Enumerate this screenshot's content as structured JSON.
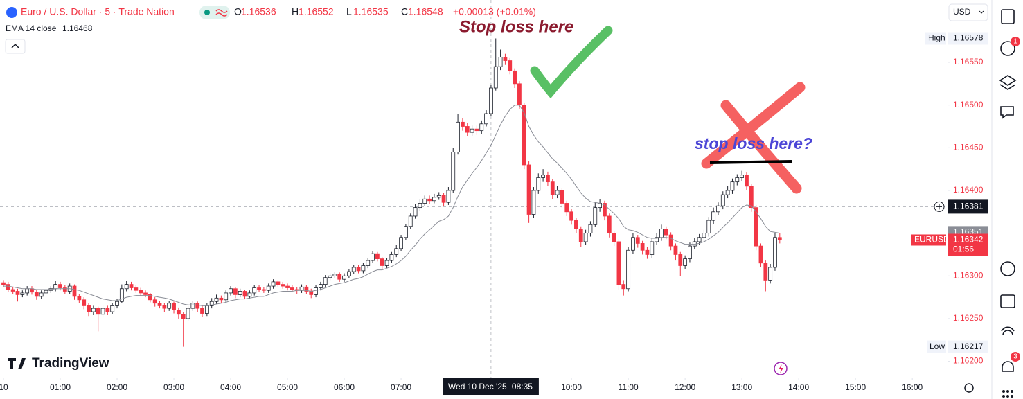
{
  "header": {
    "symbol": "Euro / U.S. Dollar · 5 · Trade Nation",
    "ohlc": [
      {
        "label": "O",
        "value": 1.16536
      },
      {
        "label": "H",
        "value": 1.16552
      },
      {
        "label": "L",
        "value": 1.16535
      },
      {
        "label": "C",
        "value": 1.16548
      }
    ],
    "change": "+0.00013 (+0.01%)",
    "indicator": {
      "name": "EMA 14 close",
      "value": 1.16468
    },
    "currency": "USD"
  },
  "logo": "TradingView",
  "sidebar_badges": [
    "1",
    "3"
  ],
  "chart_data": {
    "type": "candlestick",
    "x": [
      "00:00",
      "00:05",
      "00:10",
      "00:15",
      "00:20",
      "00:25",
      "00:30",
      "00:35",
      "00:40",
      "00:45",
      "00:50",
      "00:55",
      "01:00",
      "01:05",
      "01:10",
      "01:15",
      "01:20",
      "01:25",
      "01:30",
      "01:35",
      "01:40",
      "01:45",
      "01:50",
      "01:55",
      "02:00",
      "02:05",
      "02:10",
      "02:15",
      "02:20",
      "02:25",
      "02:30",
      "02:35",
      "02:40",
      "02:45",
      "02:50",
      "02:55",
      "03:00",
      "03:05",
      "03:10",
      "03:15",
      "03:20",
      "03:25",
      "03:30",
      "03:35",
      "03:40",
      "03:45",
      "03:50",
      "03:55",
      "04:00",
      "04:05",
      "04:10",
      "04:15",
      "04:20",
      "04:25",
      "04:30",
      "04:35",
      "04:40",
      "04:45",
      "04:50",
      "04:55",
      "05:00",
      "05:05",
      "05:10",
      "05:15",
      "05:20",
      "05:25",
      "05:30",
      "05:35",
      "05:40",
      "05:45",
      "05:50",
      "05:55",
      "06:00",
      "06:05",
      "06:10",
      "06:15",
      "06:20",
      "06:25",
      "06:30",
      "06:35",
      "06:40",
      "06:45",
      "06:50",
      "06:55",
      "07:00",
      "07:05",
      "07:10",
      "07:15",
      "07:20",
      "07:25",
      "07:30",
      "07:35",
      "07:40",
      "07:45",
      "07:50",
      "07:55",
      "08:00",
      "08:05",
      "08:10",
      "08:15",
      "08:20",
      "08:25",
      "08:30",
      "08:35",
      "08:40",
      "08:45",
      "08:50",
      "08:55",
      "09:00",
      "09:05",
      "09:10",
      "09:15",
      "09:20",
      "09:25",
      "09:30",
      "09:35",
      "09:40",
      "09:45",
      "09:50",
      "09:55",
      "10:00",
      "10:05",
      "10:10",
      "10:15",
      "10:20",
      "10:25",
      "10:30",
      "10:35",
      "10:40",
      "10:45",
      "10:50",
      "10:55",
      "11:00",
      "11:05",
      "11:10",
      "11:15",
      "11:20",
      "11:25",
      "11:30",
      "11:35",
      "11:40",
      "11:45",
      "11:50",
      "11:55",
      "12:00",
      "12:05",
      "12:10",
      "12:15",
      "12:20",
      "12:25",
      "12:30",
      "12:35",
      "12:40",
      "12:45",
      "12:50",
      "12:55",
      "13:00",
      "13:05",
      "13:10",
      "13:15",
      "13:20",
      "13:25",
      "13:30",
      "13:35",
      "13:40"
    ],
    "open": [
      1.16292,
      1.1629,
      1.16284,
      1.16282,
      1.16278,
      1.1628,
      1.16285,
      1.16281,
      1.16276,
      1.1628,
      1.16283,
      1.16285,
      1.1629,
      1.16286,
      1.16282,
      1.16288,
      1.16276,
      1.16272,
      1.16265,
      1.16258,
      1.16262,
      1.16255,
      1.16262,
      1.16258,
      1.16265,
      1.1627,
      1.16285,
      1.1629,
      1.16286,
      1.16283,
      1.1628,
      1.16278,
      1.16272,
      1.16268,
      1.16265,
      1.16262,
      1.16268,
      1.1626,
      1.16255,
      1.1625,
      1.16262,
      1.16268,
      1.16262,
      1.16256,
      1.16265,
      1.1627,
      1.16274,
      1.16272,
      1.1628,
      1.16285,
      1.16278,
      1.16282,
      1.16276,
      1.1628,
      1.16286,
      1.16284,
      1.16283,
      1.16288,
      1.16293,
      1.1629,
      1.16288,
      1.16286,
      1.16284,
      1.16283,
      1.16287,
      1.16282,
      1.16278,
      1.16286,
      1.1629,
      1.16298,
      1.163,
      1.16302,
      1.16296,
      1.163,
      1.16305,
      1.1631,
      1.16306,
      1.16312,
      1.16318,
      1.16326,
      1.1632,
      1.16312,
      1.16318,
      1.16325,
      1.16332,
      1.16345,
      1.16358,
      1.1637,
      1.1638,
      1.16385,
      1.1639,
      1.16388,
      1.16392,
      1.16394,
      1.16386,
      1.164,
      1.16445,
      1.1648,
      1.16475,
      1.16468,
      1.16472,
      1.1647,
      1.16478,
      1.1649,
      1.1652,
      1.16545,
      1.16556,
      1.16552,
      1.1654,
      1.16525,
      1.165,
      1.1643,
      1.16372,
      1.164,
      1.16415,
      1.16418,
      1.1641,
      1.16395,
      1.164,
      1.16385,
      1.16375,
      1.16365,
      1.16355,
      1.1634,
      1.1635,
      1.1636,
      1.1638,
      1.16385,
      1.1637,
      1.1635,
      1.1634,
      1.1629,
      1.16285,
      1.1633,
      1.16345,
      1.16338,
      1.1633,
      1.16325,
      1.1634,
      1.16345,
      1.16355,
      1.16348,
      1.16335,
      1.16325,
      1.16312,
      1.1632,
      1.16335,
      1.1634,
      1.16345,
      1.1635,
      1.16365,
      1.16375,
      1.16382,
      1.16395,
      1.164,
      1.1641,
      1.16415,
      1.16418,
      1.16405,
      1.1638,
      1.16335,
      1.16315,
      1.16295,
      1.1631,
      1.16345
    ],
    "high": [
      1.16295,
      1.16293,
      1.16287,
      1.16285,
      1.16283,
      1.16288,
      1.16288,
      1.16284,
      1.16283,
      1.16286,
      1.16288,
      1.16294,
      1.16293,
      1.16289,
      1.16291,
      1.1629,
      1.16279,
      1.16275,
      1.16268,
      1.16265,
      1.16264,
      1.16266,
      1.16265,
      1.16268,
      1.16273,
      1.1629,
      1.16294,
      1.16293,
      1.16289,
      1.16286,
      1.16283,
      1.1628,
      1.16275,
      1.16271,
      1.16268,
      1.16271,
      1.1627,
      1.16263,
      1.16258,
      1.16265,
      1.16271,
      1.1627,
      1.16265,
      1.16268,
      1.16274,
      1.16278,
      1.16277,
      1.16283,
      1.16288,
      1.16287,
      1.16285,
      1.16284,
      1.16283,
      1.16289,
      1.16289,
      1.16287,
      1.16291,
      1.16296,
      1.16295,
      1.16293,
      1.16291,
      1.16289,
      1.16287,
      1.1629,
      1.16289,
      1.16285,
      1.16289,
      1.16293,
      1.16301,
      1.16303,
      1.16305,
      1.16304,
      1.16303,
      1.16308,
      1.16313,
      1.16313,
      1.16315,
      1.16321,
      1.16329,
      1.16328,
      1.16322,
      1.16321,
      1.16328,
      1.16336,
      1.16348,
      1.16361,
      1.16373,
      1.16384,
      1.1639,
      1.16394,
      1.16394,
      1.16396,
      1.16398,
      1.16397,
      1.16404,
      1.1645,
      1.1649,
      1.16485,
      1.16479,
      1.16476,
      1.16476,
      1.16482,
      1.16494,
      1.16524,
      1.16578,
      1.16565,
      1.1656,
      1.16555,
      1.16543,
      1.16528,
      1.16503,
      1.16434,
      1.16404,
      1.1642,
      1.16425,
      1.16422,
      1.16413,
      1.16405,
      1.16403,
      1.16388,
      1.16378,
      1.16368,
      1.16358,
      1.16354,
      1.16364,
      1.16386,
      1.1639,
      1.16388,
      1.16373,
      1.16353,
      1.16343,
      1.16295,
      1.16334,
      1.1635,
      1.16348,
      1.16341,
      1.16334,
      1.16344,
      1.1635,
      1.1636,
      1.16358,
      1.16351,
      1.16338,
      1.16328,
      1.16324,
      1.16339,
      1.16344,
      1.16349,
      1.16354,
      1.16369,
      1.1638,
      1.16386,
      1.16399,
      1.16405,
      1.16414,
      1.16419,
      1.16423,
      1.16421,
      1.16408,
      1.16383,
      1.16338,
      1.16318,
      1.16314,
      1.1635,
      1.1635
    ],
    "low": [
      1.16287,
      1.16281,
      1.16279,
      1.1627,
      1.16275,
      1.16277,
      1.16278,
      1.16272,
      1.16273,
      1.16277,
      1.1628,
      1.16282,
      1.16283,
      1.16279,
      1.16279,
      1.16272,
      1.16268,
      1.16261,
      1.16253,
      1.16254,
      1.16235,
      1.16252,
      1.16254,
      1.16255,
      1.16262,
      1.16268,
      1.16282,
      1.16283,
      1.1628,
      1.16277,
      1.16275,
      1.16269,
      1.16264,
      1.16262,
      1.16258,
      1.16259,
      1.16256,
      1.1625,
      1.16217,
      1.16247,
      1.16259,
      1.16258,
      1.16252,
      1.16253,
      1.16262,
      1.16267,
      1.16268,
      1.16269,
      1.16277,
      1.16274,
      1.16275,
      1.16273,
      1.16273,
      1.16277,
      1.16281,
      1.1628,
      1.1628,
      1.16285,
      1.16287,
      1.16285,
      1.16283,
      1.16281,
      1.16279,
      1.1628,
      1.16279,
      1.16274,
      1.16275,
      1.16283,
      1.16287,
      1.16295,
      1.16297,
      1.16293,
      1.16293,
      1.16297,
      1.16302,
      1.16303,
      1.16303,
      1.16309,
      1.16315,
      1.16317,
      1.16308,
      1.16309,
      1.16315,
      1.16322,
      1.16329,
      1.16342,
      1.16355,
      1.16367,
      1.16376,
      1.16382,
      1.16384,
      1.16385,
      1.16389,
      1.16382,
      1.16383,
      1.16397,
      1.16442,
      1.1647,
      1.16464,
      1.16464,
      1.16465,
      1.16466,
      1.16475,
      1.16487,
      1.16517,
      1.16541,
      1.16547,
      1.16536,
      1.1652,
      1.16495,
      1.16425,
      1.16362,
      1.16368,
      1.16396,
      1.1641,
      1.16405,
      1.1639,
      1.16391,
      1.1638,
      1.1637,
      1.1636,
      1.1635,
      1.16334,
      1.16336,
      1.16346,
      1.16357,
      1.16375,
      1.16365,
      1.16345,
      1.16335,
      1.16284,
      1.16277,
      1.16282,
      1.16326,
      1.16333,
      1.16325,
      1.1632,
      1.16321,
      1.16336,
      1.16341,
      1.16343,
      1.1633,
      1.16318,
      1.163,
      1.16308,
      1.16316,
      1.16331,
      1.16336,
      1.16341,
      1.16346,
      1.16361,
      1.16371,
      1.16378,
      1.16391,
      1.16396,
      1.16406,
      1.16411,
      1.164,
      1.16375,
      1.1633,
      1.1631,
      1.16282,
      1.16291,
      1.16306,
      1.16338
    ],
    "close": [
      1.1629,
      1.16284,
      1.16282,
      1.16278,
      1.1628,
      1.16285,
      1.16281,
      1.16276,
      1.1628,
      1.16283,
      1.16285,
      1.1629,
      1.16286,
      1.16282,
      1.16288,
      1.16276,
      1.16272,
      1.16265,
      1.16258,
      1.16262,
      1.16255,
      1.16262,
      1.16258,
      1.16265,
      1.1627,
      1.16285,
      1.1629,
      1.16286,
      1.16283,
      1.1628,
      1.16278,
      1.16272,
      1.16268,
      1.16265,
      1.16262,
      1.16268,
      1.1626,
      1.16255,
      1.1625,
      1.16262,
      1.16268,
      1.16262,
      1.16256,
      1.16265,
      1.1627,
      1.16274,
      1.16272,
      1.1628,
      1.16285,
      1.16278,
      1.16282,
      1.16276,
      1.1628,
      1.16286,
      1.16284,
      1.16283,
      1.16288,
      1.16293,
      1.1629,
      1.16288,
      1.16286,
      1.16284,
      1.16283,
      1.16287,
      1.16282,
      1.16278,
      1.16286,
      1.1629,
      1.16298,
      1.163,
      1.16302,
      1.16296,
      1.163,
      1.16305,
      1.1631,
      1.16306,
      1.16312,
      1.16318,
      1.16326,
      1.1632,
      1.16312,
      1.16318,
      1.16325,
      1.16332,
      1.16345,
      1.16358,
      1.1637,
      1.1638,
      1.16385,
      1.1639,
      1.16388,
      1.16392,
      1.16394,
      1.16386,
      1.164,
      1.16445,
      1.1648,
      1.16475,
      1.16468,
      1.16472,
      1.1647,
      1.16478,
      1.1649,
      1.1652,
      1.16545,
      1.16556,
      1.16552,
      1.1654,
      1.16525,
      1.165,
      1.1643,
      1.16372,
      1.164,
      1.16415,
      1.16418,
      1.1641,
      1.16395,
      1.164,
      1.16385,
      1.16375,
      1.16365,
      1.16355,
      1.1634,
      1.1635,
      1.1636,
      1.1638,
      1.16385,
      1.1637,
      1.1635,
      1.1634,
      1.1629,
      1.16285,
      1.1633,
      1.16345,
      1.16338,
      1.1633,
      1.16325,
      1.1634,
      1.16345,
      1.16355,
      1.16348,
      1.16335,
      1.16325,
      1.16312,
      1.1632,
      1.16335,
      1.1634,
      1.16345,
      1.1635,
      1.16365,
      1.16375,
      1.16382,
      1.16395,
      1.164,
      1.1641,
      1.16415,
      1.16418,
      1.16405,
      1.1638,
      1.16335,
      1.16315,
      1.16295,
      1.1631,
      1.16345,
      1.16342
    ],
    "ema": {
      "color": "#8a8d96",
      "values": [
        1.16288,
        1.16288,
        1.16287,
        1.16286,
        1.16285,
        1.16285,
        1.16285,
        1.16284,
        1.16284,
        1.16284,
        1.16284,
        1.16285,
        1.16285,
        1.16285,
        1.16285,
        1.16284,
        1.16283,
        1.16281,
        1.16279,
        1.16277,
        1.16275,
        1.16273,
        1.16272,
        1.16271,
        1.16271,
        1.16273,
        1.16275,
        1.16276,
        1.16277,
        1.16277,
        1.16277,
        1.16277,
        1.16276,
        1.16275,
        1.16274,
        1.16273,
        1.16271,
        1.16269,
        1.16267,
        1.16266,
        1.16266,
        1.16266,
        1.16265,
        1.16265,
        1.16266,
        1.16267,
        1.16268,
        1.16269,
        1.16271,
        1.16272,
        1.16273,
        1.16273,
        1.16274,
        1.16275,
        1.16276,
        1.16276,
        1.16278,
        1.1628,
        1.16281,
        1.16282,
        1.16282,
        1.16282,
        1.16283,
        1.16283,
        1.16283,
        1.16282,
        1.16283,
        1.16284,
        1.16286,
        1.16288,
        1.1629,
        1.16291,
        1.16292,
        1.16294,
        1.16296,
        1.16297,
        1.16299,
        1.16302,
        1.16305,
        1.16307,
        1.16307,
        1.16309,
        1.16311,
        1.16314,
        1.16318,
        1.16323,
        1.1633,
        1.16336,
        1.16343,
        1.16349,
        1.16354,
        1.16359,
        1.16364,
        1.16366,
        1.1637,
        1.1638,
        1.16393,
        1.16404,
        1.16412,
        1.1642,
        1.16427,
        1.16435,
        1.16444,
        1.16453,
        1.16465,
        1.16477,
        1.16487,
        1.16495,
        1.165,
        1.165,
        1.16491,
        1.16475,
        1.16465,
        1.16457,
        1.16451,
        1.16444,
        1.16437,
        1.16432,
        1.16426,
        1.1642,
        1.16413,
        1.16405,
        1.16397,
        1.16391,
        1.16387,
        1.16386,
        1.16385,
        1.16383,
        1.16378,
        1.16373,
        1.16367,
        1.16358,
        1.16354,
        1.16353,
        1.16351,
        1.16348,
        1.16345,
        1.16344,
        1.16344,
        1.16345,
        1.16345,
        1.16344,
        1.16341,
        1.16339,
        1.16337,
        1.16337,
        1.16337,
        1.16338,
        1.1634,
        1.16343,
        1.16347,
        1.16351,
        1.16357,
        1.16362,
        1.16368,
        1.16374,
        1.1638,
        1.16383,
        1.16382,
        1.16375,
        1.16367,
        1.16358,
        1.16352,
        1.16351,
        1.1635
      ]
    },
    "up_color": "#ffffff",
    "up_border": "#1e222d",
    "down_color": "#f23645",
    "xlim": [
      "00:00",
      "16:35"
    ],
    "xticks": [
      {
        "value": "00:00",
        "label": "10"
      },
      "01:00",
      "02:00",
      "03:00",
      "04:00",
      "05:00",
      "06:00",
      "07:00",
      "10:00",
      "11:00",
      "12:00",
      "13:00",
      "14:00",
      "15:00",
      "16:00"
    ],
    "ylim": [
      1.16181,
      1.16623
    ],
    "yticks": [
      {
        "value": 1.1655,
        "label": "1.16550"
      },
      {
        "value": 1.165,
        "label": "1.16500"
      },
      {
        "value": 1.1645,
        "label": "1.16450"
      },
      {
        "value": 1.164,
        "label": "1.16400"
      },
      {
        "value": 1.1635,
        "label": "1.16350"
      },
      {
        "value": 1.163,
        "label": "1.16300"
      },
      {
        "value": 1.1625,
        "label": "1.16250"
      },
      {
        "value": 1.162,
        "label": "1.16200"
      }
    ],
    "markers": {
      "high": {
        "label": "High",
        "value": 1.16578
      },
      "low": {
        "label": "Low",
        "value": 1.16217
      },
      "crosshair_price": 1.16381,
      "previous": 1.16351,
      "last": {
        "symbol": "EURUSD",
        "value": 1.16342,
        "countdown": "01:56"
      }
    },
    "crosshair_time": {
      "x": "08:35",
      "date": "Wed 10 Dec '25",
      "time": "08:35"
    },
    "annotations": [
      "Stop loss here",
      "stop loss here?"
    ]
  }
}
